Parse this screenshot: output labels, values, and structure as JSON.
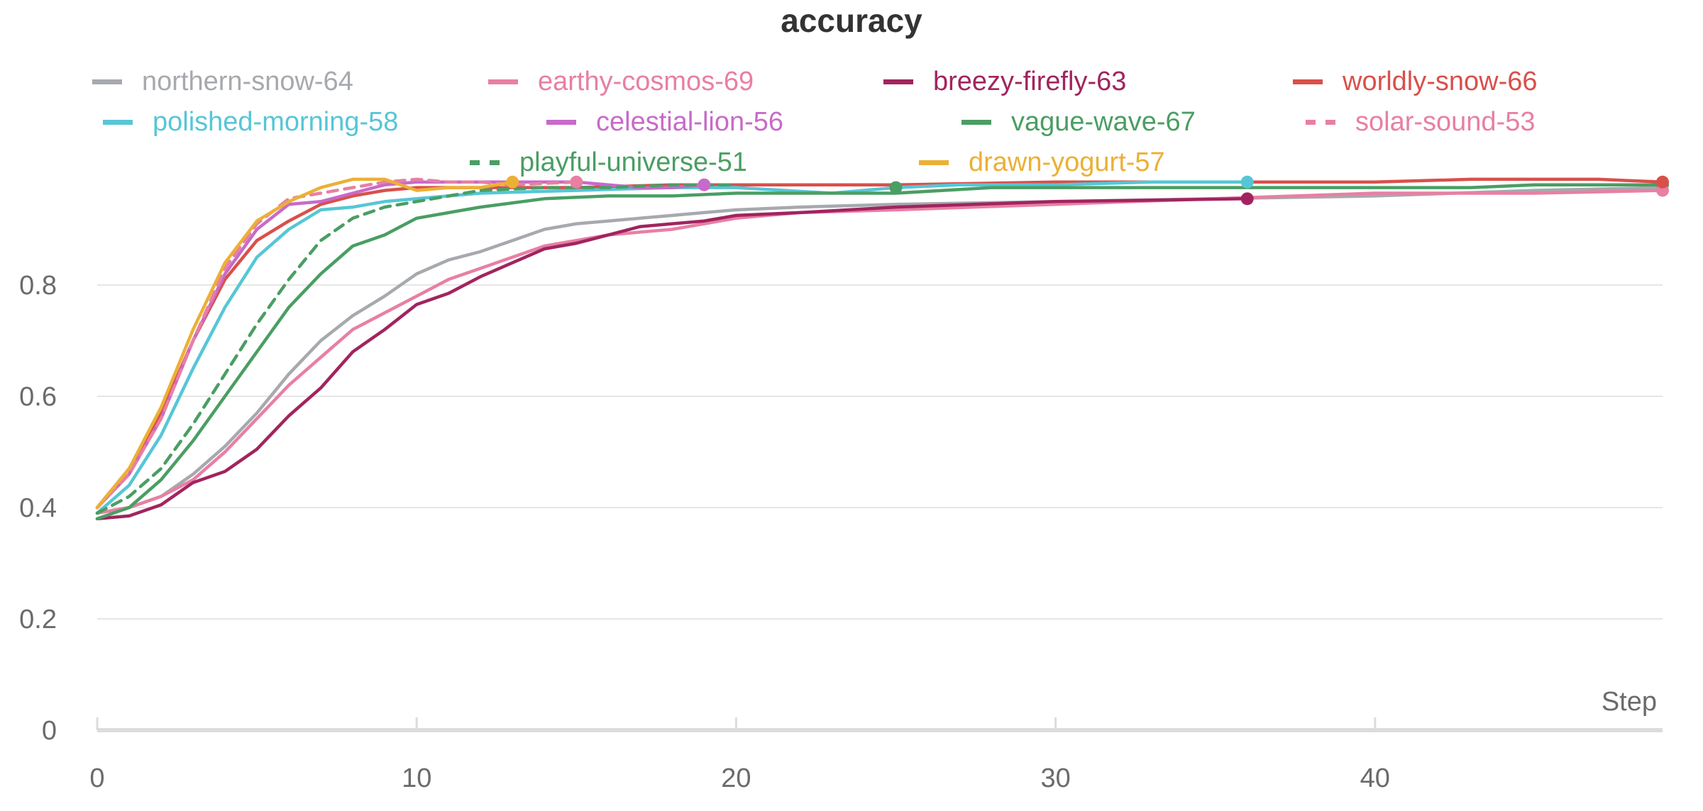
{
  "chart_data": {
    "type": "line",
    "title": "accuracy",
    "xlabel": "Step",
    "ylabel": "",
    "xlim": [
      0,
      49
    ],
    "ylim": [
      0,
      1.0
    ],
    "xticks": [
      0,
      10,
      20,
      30,
      40
    ],
    "yticks": [
      0,
      0.2,
      0.4,
      0.6,
      0.8
    ],
    "grid": true,
    "legend_position": "top",
    "series": [
      {
        "name": "northern-snow-64",
        "color": "#a6a9ad",
        "dash": "solid",
        "x": [
          0,
          1,
          2,
          3,
          4,
          5,
          6,
          7,
          8,
          9,
          10,
          11,
          12,
          13,
          14,
          15,
          16,
          17,
          18,
          19,
          20,
          22,
          25,
          30,
          35,
          40,
          45,
          49
        ],
        "y": [
          0.39,
          0.4,
          0.42,
          0.46,
          0.51,
          0.57,
          0.64,
          0.7,
          0.745,
          0.78,
          0.82,
          0.845,
          0.86,
          0.88,
          0.9,
          0.91,
          0.915,
          0.92,
          0.925,
          0.93,
          0.935,
          0.94,
          0.945,
          0.95,
          0.955,
          0.96,
          0.97,
          0.975
        ]
      },
      {
        "name": "earthy-cosmos-69",
        "color": "#e87fa4",
        "dash": "solid",
        "x": [
          0,
          1,
          2,
          3,
          4,
          5,
          6,
          7,
          8,
          9,
          10,
          11,
          12,
          13,
          14,
          15,
          16,
          17,
          18,
          19,
          20,
          22,
          25,
          30,
          35,
          40,
          45,
          49
        ],
        "y": [
          0.39,
          0.4,
          0.42,
          0.45,
          0.5,
          0.56,
          0.62,
          0.67,
          0.72,
          0.75,
          0.78,
          0.81,
          0.83,
          0.85,
          0.87,
          0.88,
          0.89,
          0.895,
          0.9,
          0.91,
          0.92,
          0.93,
          0.935,
          0.945,
          0.955,
          0.965,
          0.965,
          0.97
        ]
      },
      {
        "name": "breezy-firefly-63",
        "color": "#a1245f",
        "dash": "solid",
        "x": [
          0,
          1,
          2,
          3,
          4,
          5,
          6,
          7,
          8,
          9,
          10,
          11,
          12,
          13,
          14,
          15,
          16,
          17,
          18,
          19,
          20,
          22,
          25,
          30,
          36
        ],
        "y": [
          0.38,
          0.385,
          0.405,
          0.445,
          0.465,
          0.505,
          0.565,
          0.615,
          0.68,
          0.72,
          0.765,
          0.785,
          0.815,
          0.84,
          0.865,
          0.875,
          0.89,
          0.905,
          0.91,
          0.915,
          0.925,
          0.93,
          0.94,
          0.95,
          0.955
        ]
      },
      {
        "name": "worldly-snow-66",
        "color": "#d9504a",
        "dash": "solid",
        "x": [
          0,
          1,
          2,
          3,
          4,
          5,
          6,
          7,
          8,
          9,
          10,
          12,
          15,
          18,
          20,
          25,
          30,
          35,
          38,
          40,
          43,
          45,
          47,
          49
        ],
        "y": [
          0.4,
          0.47,
          0.57,
          0.7,
          0.81,
          0.88,
          0.915,
          0.945,
          0.96,
          0.97,
          0.975,
          0.975,
          0.975,
          0.98,
          0.98,
          0.98,
          0.985,
          0.985,
          0.985,
          0.985,
          0.99,
          0.99,
          0.99,
          0.985
        ]
      },
      {
        "name": "polished-morning-58",
        "color": "#56c6d6",
        "dash": "solid",
        "x": [
          0,
          1,
          2,
          3,
          4,
          5,
          6,
          7,
          8,
          9,
          10,
          12,
          15,
          18,
          20,
          23,
          25,
          27,
          30,
          33,
          36
        ],
        "y": [
          0.39,
          0.44,
          0.53,
          0.65,
          0.76,
          0.85,
          0.9,
          0.935,
          0.94,
          0.95,
          0.955,
          0.965,
          0.97,
          0.975,
          0.975,
          0.965,
          0.975,
          0.98,
          0.98,
          0.985,
          0.985
        ]
      },
      {
        "name": "celestial-lion-56",
        "color": "#c86ac9",
        "dash": "solid",
        "x": [
          0,
          1,
          2,
          3,
          4,
          5,
          6,
          7,
          8,
          9,
          10,
          12,
          14,
          15,
          16,
          17,
          18,
          19
        ],
        "y": [
          0.4,
          0.46,
          0.56,
          0.7,
          0.82,
          0.9,
          0.945,
          0.95,
          0.965,
          0.98,
          0.985,
          0.985,
          0.985,
          0.985,
          0.98,
          0.975,
          0.975,
          0.98
        ]
      },
      {
        "name": "vague-wave-67",
        "color": "#4a9e63",
        "dash": "solid",
        "x": [
          0,
          1,
          2,
          3,
          4,
          5,
          6,
          7,
          8,
          9,
          10,
          12,
          14,
          16,
          18,
          20,
          22,
          25,
          28,
          30,
          33,
          36,
          40,
          43,
          45,
          49
        ],
        "y": [
          0.38,
          0.4,
          0.45,
          0.52,
          0.6,
          0.68,
          0.76,
          0.82,
          0.87,
          0.89,
          0.92,
          0.94,
          0.955,
          0.96,
          0.96,
          0.965,
          0.965,
          0.965,
          0.975,
          0.975,
          0.975,
          0.975,
          0.975,
          0.975,
          0.98,
          0.98
        ]
      },
      {
        "name": "solar-sound-53",
        "color": "#e87fa4",
        "dash": "dashed",
        "x": [
          0,
          1,
          2,
          3,
          4,
          5,
          6,
          7,
          8,
          9,
          10,
          11,
          12,
          13,
          15
        ],
        "y": [
          0.4,
          0.46,
          0.56,
          0.7,
          0.83,
          0.91,
          0.955,
          0.965,
          0.975,
          0.985,
          0.99,
          0.985,
          0.985,
          0.98,
          0.985
        ]
      },
      {
        "name": "playful-universe-51",
        "color": "#4a9e63",
        "dash": "dashed",
        "x": [
          0,
          1,
          2,
          3,
          4,
          5,
          6,
          7,
          8,
          9,
          10,
          12,
          14,
          16,
          18,
          20
        ],
        "y": [
          0.39,
          0.42,
          0.47,
          0.55,
          0.64,
          0.73,
          0.81,
          0.88,
          0.92,
          0.94,
          0.95,
          0.97,
          0.975,
          0.975,
          0.98,
          0.98
        ]
      },
      {
        "name": "drawn-yogurt-57",
        "color": "#ecb035",
        "dash": "solid",
        "x": [
          0,
          1,
          2,
          3,
          4,
          5,
          6,
          7,
          8,
          9,
          10,
          11,
          12,
          13
        ],
        "y": [
          0.4,
          0.47,
          0.58,
          0.72,
          0.84,
          0.915,
          0.95,
          0.975,
          0.99,
          0.99,
          0.97,
          0.975,
          0.975,
          0.985
        ]
      }
    ],
    "markers": [
      {
        "series": "drawn-yogurt-57",
        "x": 13,
        "y": 0.985
      },
      {
        "series": "solar-sound-53",
        "x": 15,
        "y": 0.985
      },
      {
        "series": "celestial-lion-56",
        "x": 19,
        "y": 0.98
      },
      {
        "series": "vague-wave-67",
        "x": 25,
        "y": 0.975
      },
      {
        "series": "breezy-firefly-63",
        "x": 36,
        "y": 0.955
      },
      {
        "series": "polished-morning-58",
        "x": 36,
        "y": 0.985
      },
      {
        "series": "vague-wave-67",
        "x": 49,
        "y": 0.98
      },
      {
        "series": "earthy-cosmos-69",
        "x": 49,
        "y": 0.97
      },
      {
        "series": "worldly-snow-66",
        "x": 49,
        "y": 0.985
      }
    ]
  }
}
